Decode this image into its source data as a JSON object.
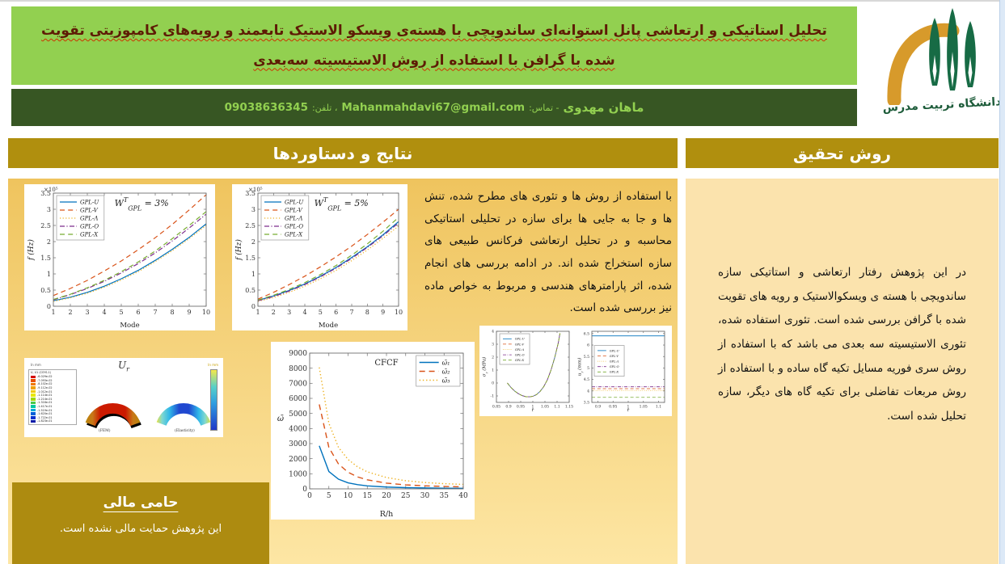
{
  "header": {
    "title": "تحلیل استاتیکی و ارتعاشی پانل استوانه‌ای ساندویچی با هسته‌ی ویسکو الاستیک تابعمند و رویه‌های کامپوزیتی تقویت شده با گرافن با استفاده از روش الاستیسیته سه‌بعدی",
    "contact": {
      "name": "ماهان مهدوی",
      "contact_label": "- تماس:",
      "email": "Mahanmahdavi67@gmail.com",
      "phone_label": "، تلفن:",
      "phone": "09038636345"
    },
    "logo_name": "دانشگاه تربیت مدرس"
  },
  "sections": {
    "results": {
      "title": "نتایج و دستاوردها",
      "body": "با استفاده از روش ها و تئوری های مطرح شده، تنش ها و جا به جایی ها برای سازه در تحلیلی استاتیکی محاسبه و در تحلیل ارتعاشی فرکانس طبیعی های سازه استخراج شده اند. در ادامه بررسی های انجام شده، اثر پارامترهای هندسی و مربوط به خواص ماده نیز بررسی شده است."
    },
    "method": {
      "title": "روش تحقیق",
      "body": "در این پژوهش رفتار ارتعاشی و استاتیکی سازه ساندویچی با هسته ی ویسکوالاستیک و رویه های تقویت شده با گرافن بررسی شده است. تئوری استفاده شده، تئوری الاستیسیته سه بعدی می باشد که با استفاده از روش سری فوریه مسایل تکیه گاه ساده و با استفاده از روش مربعات تفاضلی برای تکیه گاه های دیگر، سازه تحلیل شده است."
    },
    "sponsor": {
      "title": "حامی مالی",
      "body": "این پژوهش حمایت مالی نشده است."
    }
  },
  "colors": {
    "banner_green": "#92D050",
    "contact_bar_green": "#375623",
    "section_header_gold": "#B08F0E",
    "left_panel_gold": "#EFC45E",
    "right_panel_cream": "#FBE3AD",
    "title_text_maroon": "#5E1B05",
    "sponsor_block_gold": "#AD8B10"
  },
  "ur_panel": {
    "title_base": "U",
    "title_sub": "r",
    "unit_label": "In mm",
    "fem_label": "(FEM)",
    "elasticity_label": "(Elasticity)",
    "legend_title": "U, U1 (CSYS-1)",
    "legend_values": [
      "-6.029e-02",
      "-7.093e-02",
      "-8.102e-02",
      "-9.112e-02",
      "-1.012e-01",
      "-1.114e-01",
      "-1.214e-01",
      "-1.316e-01",
      "-1.417e-01",
      "-1.519e-01",
      "-1.620e-01",
      "-1.722e-01",
      "-1.823e-01"
    ]
  },
  "chart_data": [
    {
      "id": "freq3",
      "type": "line",
      "annotation": {
        "base": "W",
        "sup": "T",
        "sub": "GPL",
        "rest": " = 3%"
      },
      "xlabel": "Mode",
      "ylabel": {
        "base": "f",
        "rest": " (Hz)",
        "italic": true
      },
      "exponent_label": "×10⁵",
      "xlim": [
        1,
        10
      ],
      "ylim": [
        0,
        3.5
      ],
      "xticks": [
        1,
        2,
        3,
        4,
        5,
        6,
        7,
        8,
        9,
        10
      ],
      "yticks": [
        0,
        0.5,
        1,
        1.5,
        2,
        2.5,
        3,
        3.5
      ],
      "x": [
        1,
        2,
        3,
        4,
        5,
        6,
        7,
        8,
        9,
        10
      ],
      "legend_pos": "nw",
      "grid": false,
      "series": [
        {
          "name": "GPL-U",
          "color": "#0072BD",
          "dash": "solid",
          "values": [
            0.17,
            0.28,
            0.43,
            0.62,
            0.85,
            1.11,
            1.42,
            1.76,
            2.13,
            2.55
          ]
        },
        {
          "name": "GPL-V",
          "color": "#D95319",
          "dash": "dashed",
          "values": [
            0.33,
            0.55,
            0.8,
            1.09,
            1.4,
            1.75,
            2.12,
            2.53,
            2.98,
            3.45
          ]
        },
        {
          "name": "GPL-Λ",
          "color": "#EDB120",
          "dash": "dotted",
          "values": [
            0.15,
            0.26,
            0.4,
            0.59,
            0.81,
            1.07,
            1.38,
            1.72,
            2.09,
            2.5
          ]
        },
        {
          "name": "GPL-O",
          "color": "#7E2F8E",
          "dash": "dashdot",
          "values": [
            0.2,
            0.36,
            0.55,
            0.77,
            1.03,
            1.32,
            1.65,
            2.02,
            2.42,
            2.85
          ]
        },
        {
          "name": "GPL-X",
          "color": "#77AC30",
          "dash": "dashed",
          "values": [
            0.21,
            0.37,
            0.57,
            0.8,
            1.07,
            1.37,
            1.71,
            2.09,
            2.5,
            2.93
          ]
        }
      ]
    },
    {
      "id": "freq5",
      "type": "line",
      "annotation": {
        "base": "W",
        "sup": "T",
        "sub": "GPL",
        "rest": " = 5%"
      },
      "xlabel": "Mode",
      "ylabel": {
        "base": "f",
        "rest": " (Hz)",
        "italic": true
      },
      "exponent_label": "×10⁵",
      "xlim": [
        1,
        10
      ],
      "ylim": [
        0,
        3.5
      ],
      "xticks": [
        1,
        2,
        3,
        4,
        5,
        6,
        7,
        8,
        9,
        10
      ],
      "yticks": [
        0,
        0.5,
        1,
        1.5,
        2,
        2.5,
        3,
        3.5
      ],
      "x": [
        1,
        2,
        3,
        4,
        5,
        6,
        7,
        8,
        9,
        10
      ],
      "legend_pos": "nw",
      "grid": false,
      "series": [
        {
          "name": "GPL-U",
          "color": "#0072BD",
          "dash": "solid",
          "values": [
            0.18,
            0.32,
            0.49,
            0.69,
            0.93,
            1.2,
            1.51,
            1.84,
            2.21,
            2.62
          ]
        },
        {
          "name": "GPL-V",
          "color": "#D95319",
          "dash": "dashed",
          "values": [
            0.22,
            0.43,
            0.67,
            0.93,
            1.22,
            1.53,
            1.86,
            2.22,
            2.6,
            3.0
          ]
        },
        {
          "name": "GPL-Λ",
          "color": "#EDB120",
          "dash": "dotted",
          "values": [
            0.15,
            0.27,
            0.43,
            0.62,
            0.85,
            1.11,
            1.41,
            1.74,
            2.1,
            2.48
          ]
        },
        {
          "name": "GPL-O",
          "color": "#7E2F8E",
          "dash": "dashdot",
          "values": [
            0.17,
            0.3,
            0.47,
            0.67,
            0.91,
            1.18,
            1.48,
            1.82,
            2.18,
            2.58
          ]
        },
        {
          "name": "GPL-X",
          "color": "#77AC30",
          "dash": "dashed",
          "values": [
            0.19,
            0.34,
            0.52,
            0.73,
            0.98,
            1.26,
            1.58,
            1.93,
            2.32,
            2.75
          ]
        }
      ]
    },
    {
      "id": "cfcf",
      "type": "line",
      "title": "CFCF",
      "xlabel": "R/h",
      "ylabel": {
        "base": "ω̄",
        "italic": true
      },
      "xlim": [
        0,
        40
      ],
      "ylim": [
        0,
        9000
      ],
      "xticks": [
        0,
        5,
        10,
        15,
        20,
        25,
        30,
        35,
        40
      ],
      "yticks": [
        0,
        1000,
        2000,
        3000,
        4000,
        5000,
        6000,
        7000,
        8000,
        9000
      ],
      "x": [
        2.5,
        5,
        7.5,
        10,
        12.5,
        15,
        20,
        25,
        30,
        35,
        40
      ],
      "legend_pos": "ne",
      "grid": false,
      "series": [
        {
          "name": "ω̄₁",
          "color": "#0072BD",
          "dash": "solid",
          "values": [
            2850,
            1150,
            640,
            400,
            275,
            200,
            120,
            80,
            60,
            45,
            35
          ]
        },
        {
          "name": "ω̄₂",
          "color": "#D95319",
          "dash": "dashed",
          "values": [
            5600,
            2750,
            1650,
            1100,
            790,
            600,
            380,
            265,
            200,
            160,
            130
          ]
        },
        {
          "name": "ω̄₃",
          "color": "#EDB120",
          "dash": "dotted",
          "values": [
            8050,
            4350,
            2750,
            1950,
            1450,
            1130,
            750,
            540,
            420,
            345,
            295
          ]
        }
      ]
    },
    {
      "id": "sigma",
      "type": "line",
      "note": "all five GPL distribution curves coincide",
      "xlabel": "r̄",
      "ylabel": {
        "base": "σ",
        "sub": "r",
        "rest": " (MPa)",
        "italic": true
      },
      "xlim": [
        0.85,
        1.15
      ],
      "ylim": [
        -1.5,
        4
      ],
      "xticks": [
        0.85,
        0.9,
        0.95,
        1,
        1.05,
        1.1,
        1.15
      ],
      "yticks": [
        -1,
        0,
        1,
        2,
        3,
        4
      ],
      "x": [
        0.895,
        0.91,
        0.925,
        0.94,
        0.955,
        0.97,
        0.985,
        1.0,
        1.015,
        1.03,
        1.045,
        1.06,
        1.075,
        1.09,
        1.105,
        1.112
      ],
      "legend_pos": "nw",
      "grid": false,
      "series": [
        {
          "name": "GPL-U",
          "color": "#0072BD",
          "dash": "solid",
          "values": [
            0,
            -0.35,
            -0.62,
            -0.82,
            -0.97,
            -1.05,
            -1.07,
            -1.03,
            -0.9,
            -0.65,
            -0.28,
            0.25,
            1.0,
            1.95,
            3.1,
            3.85
          ]
        },
        {
          "name": "GPL-V",
          "color": "#D95319",
          "dash": "dashed",
          "values": "same"
        },
        {
          "name": "GPL-Λ",
          "color": "#EDB120",
          "dash": "dotted",
          "values": "same"
        },
        {
          "name": "GPL-O",
          "color": "#7E2F8E",
          "dash": "dashdot",
          "values": "same"
        },
        {
          "name": "GPL-X",
          "color": "#77AC30",
          "dash": "dashed",
          "values": "same"
        }
      ]
    },
    {
      "id": "ur",
      "type": "line",
      "xlabel": "r̄",
      "ylabel": {
        "base": "u",
        "sub": "r",
        "rest": " (mm)",
        "italic": true
      },
      "xlim": [
        0.88,
        1.12
      ],
      "ylim": [
        3.5,
        6.6
      ],
      "xticks": [
        0.9,
        0.95,
        1,
        1.05,
        1.1
      ],
      "yticks": [
        3.5,
        4,
        4.5,
        5,
        5.5,
        6,
        6.5
      ],
      "x": [
        0.88,
        1.12
      ],
      "legend_pos": "w",
      "grid": false,
      "series": [
        {
          "name": "GPL-U",
          "color": "#0072BD",
          "dash": "solid",
          "values": [
            6.4,
            6.4
          ]
        },
        {
          "name": "GPL-V",
          "color": "#D95319",
          "dash": "dashed",
          "values": [
            4.1,
            4.1
          ]
        },
        {
          "name": "GPL-Λ",
          "color": "#EDB120",
          "dash": "dotted",
          "values": [
            4.02,
            4.02
          ]
        },
        {
          "name": "GPL-O",
          "color": "#7E2F8E",
          "dash": "dashdot",
          "values": [
            4.18,
            4.18
          ]
        },
        {
          "name": "GPL-X",
          "color": "#77AC30",
          "dash": "dashed",
          "values": [
            3.72,
            3.72
          ]
        }
      ]
    }
  ]
}
